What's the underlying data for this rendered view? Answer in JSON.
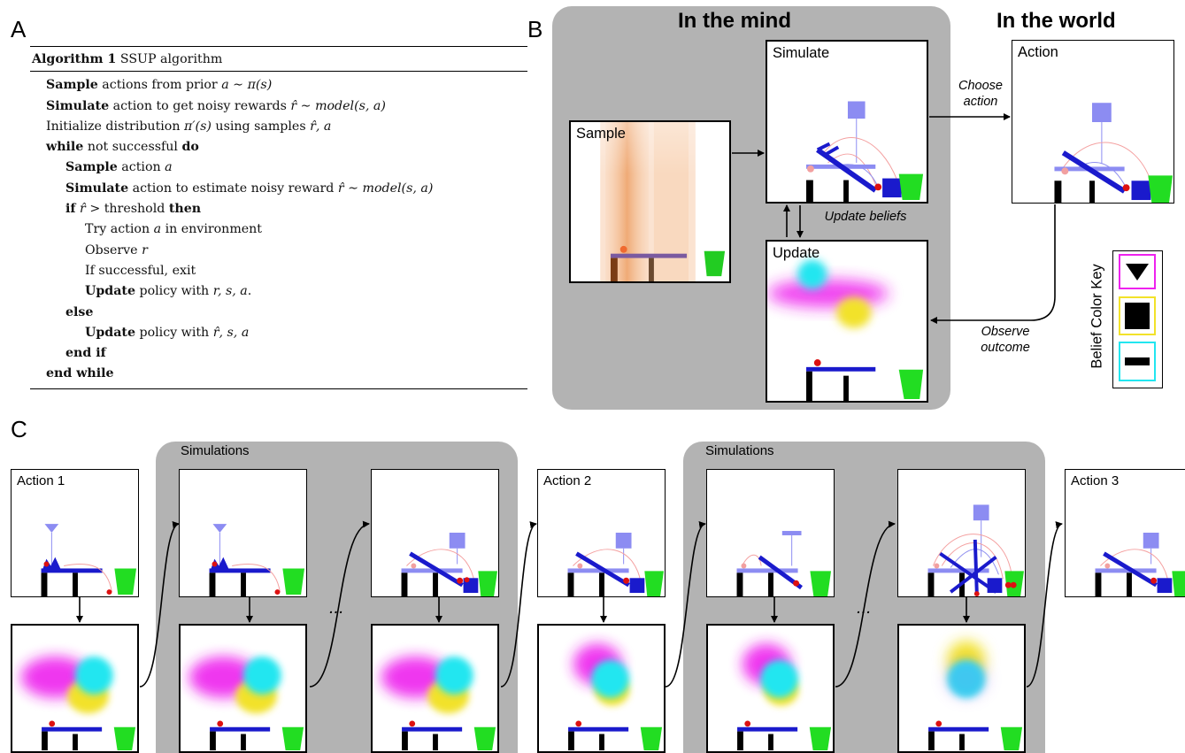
{
  "panel_letters": {
    "a": "A",
    "b": "B",
    "c": "C"
  },
  "algorithm": {
    "header_bold": "Algorithm 1",
    "header_rest": " SSUP algorithm",
    "lines": [
      {
        "indent": 0,
        "parts": [
          {
            "t": "Sample",
            "s": "b"
          },
          {
            "t": " actions from prior "
          },
          {
            "t": "a ∼ π(s)",
            "s": "i"
          }
        ]
      },
      {
        "indent": 0,
        "parts": [
          {
            "t": "Simulate",
            "s": "b"
          },
          {
            "t": " action to get noisy rewards "
          },
          {
            "t": "r̂ ∼ model(s, a)",
            "s": "i"
          }
        ]
      },
      {
        "indent": 0,
        "parts": [
          {
            "t": "Initialize distribution "
          },
          {
            "t": "π′(s)",
            "s": "i"
          },
          {
            "t": " using samples "
          },
          {
            "t": "r̂, a",
            "s": "i"
          }
        ]
      },
      {
        "indent": 0,
        "parts": [
          {
            "t": "while",
            "s": "b"
          },
          {
            "t": " not successful "
          },
          {
            "t": "do",
            "s": "b"
          }
        ]
      },
      {
        "indent": 1,
        "parts": [
          {
            "t": "Sample",
            "s": "b"
          },
          {
            "t": " action "
          },
          {
            "t": "a",
            "s": "i"
          }
        ]
      },
      {
        "indent": 1,
        "parts": [
          {
            "t": "Simulate",
            "s": "b"
          },
          {
            "t": " action to estimate noisy reward "
          },
          {
            "t": "r̂ ∼ model(s, a)",
            "s": "i"
          }
        ]
      },
      {
        "indent": 1,
        "parts": [
          {
            "t": "if",
            "s": "b"
          },
          {
            "t": " "
          },
          {
            "t": "r̂",
            "s": "i"
          },
          {
            "t": " > threshold "
          },
          {
            "t": "then",
            "s": "b"
          }
        ]
      },
      {
        "indent": 2,
        "parts": [
          {
            "t": "Try action "
          },
          {
            "t": "a",
            "s": "i"
          },
          {
            "t": " in environment"
          }
        ]
      },
      {
        "indent": 2,
        "parts": [
          {
            "t": "Observe "
          },
          {
            "t": "r",
            "s": "i"
          }
        ]
      },
      {
        "indent": 2,
        "parts": [
          {
            "t": "If successful, exit"
          }
        ]
      },
      {
        "indent": 2,
        "parts": [
          {
            "t": "Update",
            "s": "b"
          },
          {
            "t": " policy with "
          },
          {
            "t": "r, s, a",
            "s": "i"
          },
          {
            "t": "."
          }
        ]
      },
      {
        "indent": 1,
        "parts": [
          {
            "t": "else",
            "s": "b"
          }
        ]
      },
      {
        "indent": 2,
        "parts": [
          {
            "t": "Update",
            "s": "b"
          },
          {
            "t": " policy with "
          },
          {
            "t": "r̂, s, a",
            "s": "i"
          }
        ]
      },
      {
        "indent": 1,
        "parts": [
          {
            "t": "end if",
            "s": "b"
          }
        ]
      },
      {
        "indent": 0,
        "parts": [
          {
            "t": "end while",
            "s": "b"
          }
        ]
      }
    ]
  },
  "panel_b": {
    "mind_header": "In the mind",
    "world_header": "In the world",
    "sample_title": "Sample",
    "simulate_title": "Simulate",
    "update_title": "Update",
    "action_title": "Action",
    "choose_action": "Choose\naction",
    "update_beliefs": "Update beliefs",
    "observe_outcome": "Observe\noutcome",
    "belief_key_label": "Belief Color Key"
  },
  "panel_c": {
    "simulations_label": "Simulations",
    "ellipsis": "...",
    "action_titles": [
      "Action 1",
      "Action 2",
      "Action 3"
    ]
  },
  "colors": {
    "gray": "#b3b3b3",
    "object_blue": "#1a1acc",
    "light_object": "#8c8cf2",
    "ball_red": "#dd1111",
    "goal_green": "#22dd22",
    "belief_triangle": "#ee22ee",
    "belief_square": "#f2e22a",
    "belief_bar": "#22e6f0",
    "sample_orange": "#f0a060"
  }
}
